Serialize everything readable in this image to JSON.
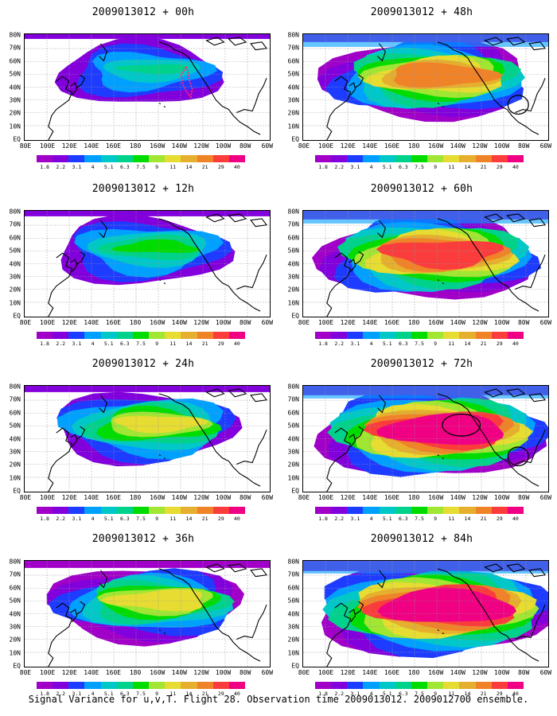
{
  "footer_caption": "Signal Variance for u,v,T. Flight 28. Observation time 2009013012. 2009012700 ensemble.",
  "legend": {
    "ticks": [
      "1.8",
      "2.2",
      "3.1",
      "4",
      "5.1",
      "6.3",
      "7.5",
      "9",
      "11",
      "14",
      "21",
      "29",
      "40"
    ],
    "colors": [
      "#a000c8",
      "#8200dc",
      "#1e3cff",
      "#00a0ff",
      "#00c8c8",
      "#00d28c",
      "#00dc00",
      "#a0e632",
      "#e6dc32",
      "#e6af2d",
      "#f08228",
      "#fa3c3c",
      "#f00082"
    ]
  },
  "lat_labels": [
    "80N",
    "70N",
    "60N",
    "50N",
    "40N",
    "30N",
    "20N",
    "10N",
    "EQ"
  ],
  "lon_labels": [
    "80E",
    "100E",
    "120E",
    "140E",
    "160E",
    "180",
    "160W",
    "140W",
    "120W",
    "100W",
    "80W",
    "60W"
  ],
  "panels": [
    {
      "title": "2009013012 + 00h",
      "level": 0,
      "flight_track": true,
      "circles": 0
    },
    {
      "title": "2009013012 + 48h",
      "level": 4,
      "flight_track": false,
      "circles": 1
    },
    {
      "title": "2009013012 + 12h",
      "level": 1,
      "flight_track": false,
      "circles": 0
    },
    {
      "title": "2009013012 + 60h",
      "level": 5,
      "flight_track": false,
      "circles": 0
    },
    {
      "title": "2009013012 + 24h",
      "level": 2,
      "flight_track": false,
      "circles": 0
    },
    {
      "title": "2009013012 + 72h",
      "level": 6,
      "flight_track": false,
      "circles": 2
    },
    {
      "title": "2009013012 + 36h",
      "level": 3,
      "flight_track": false,
      "circles": 0
    },
    {
      "title": "2009013012 + 84h",
      "level": 7,
      "flight_track": false,
      "circles": 0
    }
  ]
}
